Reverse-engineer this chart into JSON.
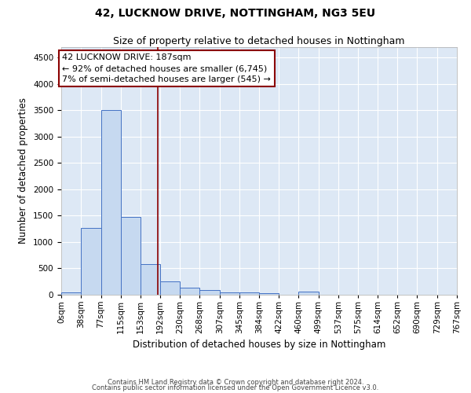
{
  "title": "42, LUCKNOW DRIVE, NOTTINGHAM, NG3 5EU",
  "subtitle": "Size of property relative to detached houses in Nottingham",
  "xlabel": "Distribution of detached houses by size in Nottingham",
  "ylabel": "Number of detached properties",
  "bar_labels": [
    "0sqm",
    "38sqm",
    "77sqm",
    "115sqm",
    "153sqm",
    "192sqm",
    "230sqm",
    "268sqm",
    "307sqm",
    "345sqm",
    "384sqm",
    "422sqm",
    "460sqm",
    "499sqm",
    "537sqm",
    "575sqm",
    "614sqm",
    "652sqm",
    "690sqm",
    "729sqm",
    "767sqm"
  ],
  "bin_edges": [
    0,
    38,
    77,
    115,
    153,
    192,
    230,
    268,
    307,
    345,
    384,
    422,
    460,
    499,
    537,
    575,
    614,
    652,
    690,
    729,
    767
  ],
  "bar_heights": [
    50,
    1270,
    3500,
    1480,
    580,
    250,
    130,
    85,
    50,
    45,
    35,
    0,
    55,
    0,
    0,
    0,
    0,
    0,
    0,
    0
  ],
  "bar_color": "#c6d9f0",
  "bar_edge_color": "#4472c4",
  "vline_x": 187,
  "vline_color": "#8b0000",
  "annotation_line1": "42 LUCKNOW DRIVE: 187sqm",
  "annotation_line2": "← 92% of detached houses are smaller (6,745)",
  "annotation_line3": "7% of semi-detached houses are larger (545) →",
  "annotation_box_color": "#ffffff",
  "annotation_box_edge_color": "#8b0000",
  "ylim": [
    0,
    4700
  ],
  "yticks": [
    0,
    500,
    1000,
    1500,
    2000,
    2500,
    3000,
    3500,
    4000,
    4500
  ],
  "footnote1": "Contains HM Land Registry data © Crown copyright and database right 2024.",
  "footnote2": "Contains public sector information licensed under the Open Government Licence v3.0.",
  "plot_bg_color": "#dde8f5",
  "fig_bg_color": "#ffffff",
  "title_fontsize": 10,
  "subtitle_fontsize": 9,
  "axis_label_fontsize": 8.5,
  "tick_fontsize": 7.5,
  "annotation_fontsize": 8,
  "footnote_fontsize": 6
}
